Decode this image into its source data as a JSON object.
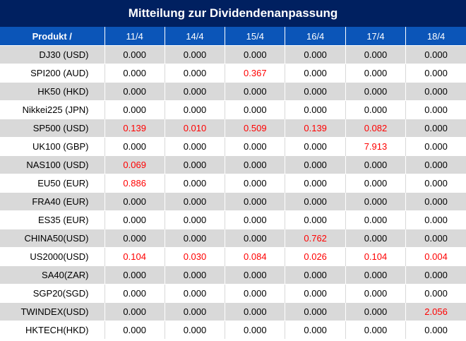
{
  "title": "Mitteilung zur Dividendenanpassung",
  "header": {
    "product": "Produkt /",
    "dates": [
      "11/4",
      "14/4",
      "15/4",
      "16/4",
      "17/4",
      "18/4"
    ]
  },
  "colors": {
    "title_bg": "#002060",
    "header_bg": "#0b55b8",
    "highlight": "#ff0000",
    "stripe": "#d9d9d9"
  },
  "rows": [
    {
      "product": "DJ30 (USD)",
      "values": [
        "0.000",
        "0.000",
        "0.000",
        "0.000",
        "0.000",
        "0.000"
      ]
    },
    {
      "product": "SPI200 (AUD)",
      "values": [
        "0.000",
        "0.000",
        "0.367",
        "0.000",
        "0.000",
        "0.000"
      ]
    },
    {
      "product": "HK50 (HKD)",
      "values": [
        "0.000",
        "0.000",
        "0.000",
        "0.000",
        "0.000",
        "0.000"
      ]
    },
    {
      "product": "Nikkei225 (JPN)",
      "values": [
        "0.000",
        "0.000",
        "0.000",
        "0.000",
        "0.000",
        "0.000"
      ]
    },
    {
      "product": "SP500 (USD)",
      "values": [
        "0.139",
        "0.010",
        "0.509",
        "0.139",
        "0.082",
        "0.000"
      ]
    },
    {
      "product": "UK100 (GBP)",
      "values": [
        "0.000",
        "0.000",
        "0.000",
        "0.000",
        "7.913",
        "0.000"
      ]
    },
    {
      "product": "NAS100 (USD)",
      "values": [
        "0.069",
        "0.000",
        "0.000",
        "0.000",
        "0.000",
        "0.000"
      ]
    },
    {
      "product": "EU50 (EUR)",
      "values": [
        "0.886",
        "0.000",
        "0.000",
        "0.000",
        "0.000",
        "0.000"
      ]
    },
    {
      "product": "FRA40 (EUR)",
      "values": [
        "0.000",
        "0.000",
        "0.000",
        "0.000",
        "0.000",
        "0.000"
      ]
    },
    {
      "product": "ES35 (EUR)",
      "values": [
        "0.000",
        "0.000",
        "0.000",
        "0.000",
        "0.000",
        "0.000"
      ]
    },
    {
      "product": "CHINA50(USD)",
      "values": [
        "0.000",
        "0.000",
        "0.000",
        "0.762",
        "0.000",
        "0.000"
      ]
    },
    {
      "product": "US2000(USD)",
      "values": [
        "0.104",
        "0.030",
        "0.084",
        "0.026",
        "0.104",
        "0.004"
      ]
    },
    {
      "product": "SA40(ZAR)",
      "values": [
        "0.000",
        "0.000",
        "0.000",
        "0.000",
        "0.000",
        "0.000"
      ]
    },
    {
      "product": "SGP20(SGD)",
      "values": [
        "0.000",
        "0.000",
        "0.000",
        "0.000",
        "0.000",
        "0.000"
      ]
    },
    {
      "product": "TWINDEX(USD)",
      "values": [
        "0.000",
        "0.000",
        "0.000",
        "0.000",
        "0.000",
        "2.056"
      ]
    },
    {
      "product": "HKTECH(HKD)",
      "values": [
        "0.000",
        "0.000",
        "0.000",
        "0.000",
        "0.000",
        "0.000"
      ]
    }
  ]
}
